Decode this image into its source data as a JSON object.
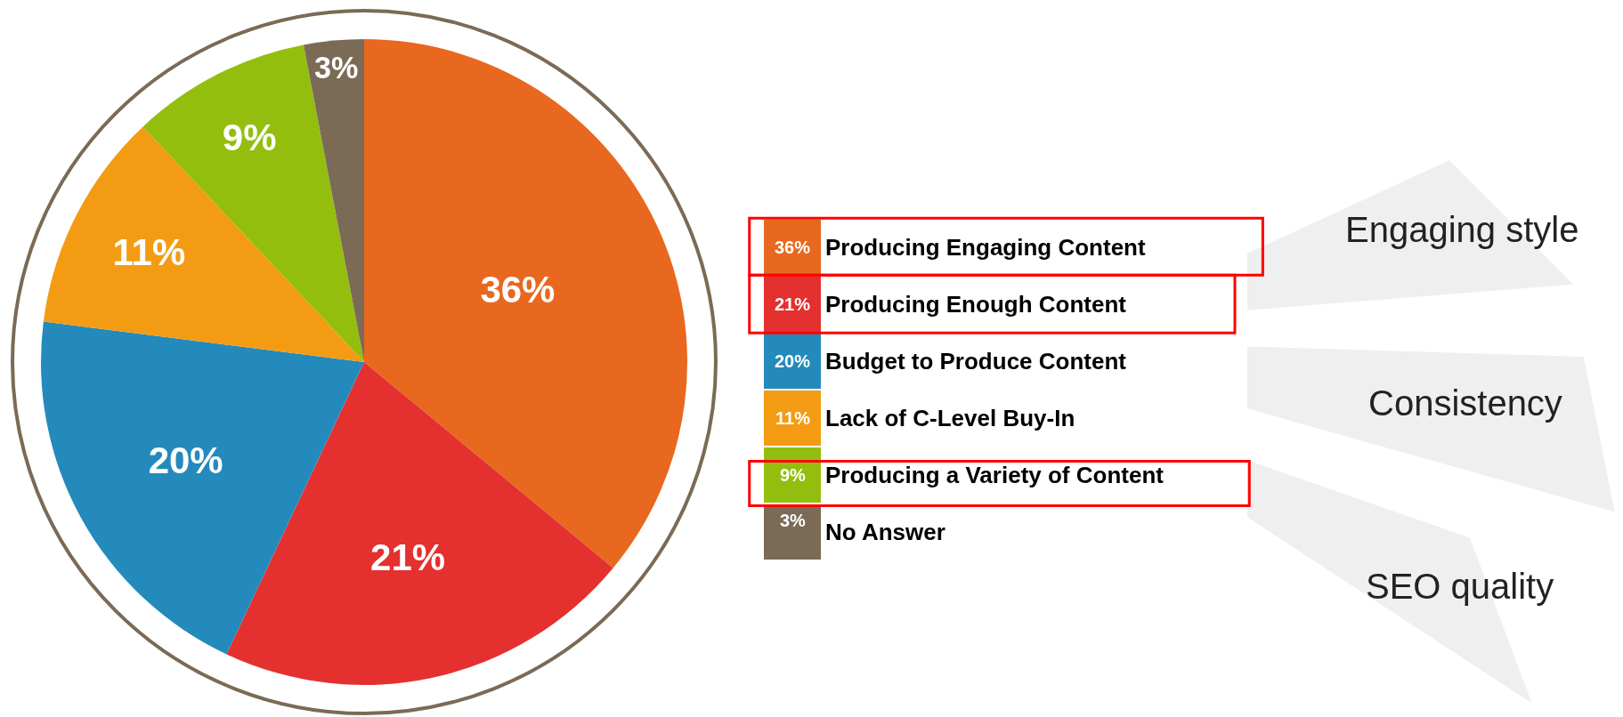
{
  "chart_data": {
    "type": "pie",
    "categories": [
      "Producing Engaging Content",
      "Producing Enough Content",
      "Budget to Produce Content",
      "Lack of C-Level Buy-In",
      "Producing a Variety of Content",
      "No Answer"
    ],
    "values": [
      36,
      21,
      20,
      11,
      9,
      3
    ],
    "value_labels": [
      "36%",
      "21%",
      "20%",
      "11%",
      "9%",
      "3%"
    ],
    "colors": [
      "#e8681f",
      "#e4302f",
      "#238abb",
      "#f39c13",
      "#94be0e",
      "#7b6a56"
    ],
    "legend": "right",
    "annotations": [
      "Engaging style",
      "Consistency",
      "SEO quality"
    ]
  }
}
